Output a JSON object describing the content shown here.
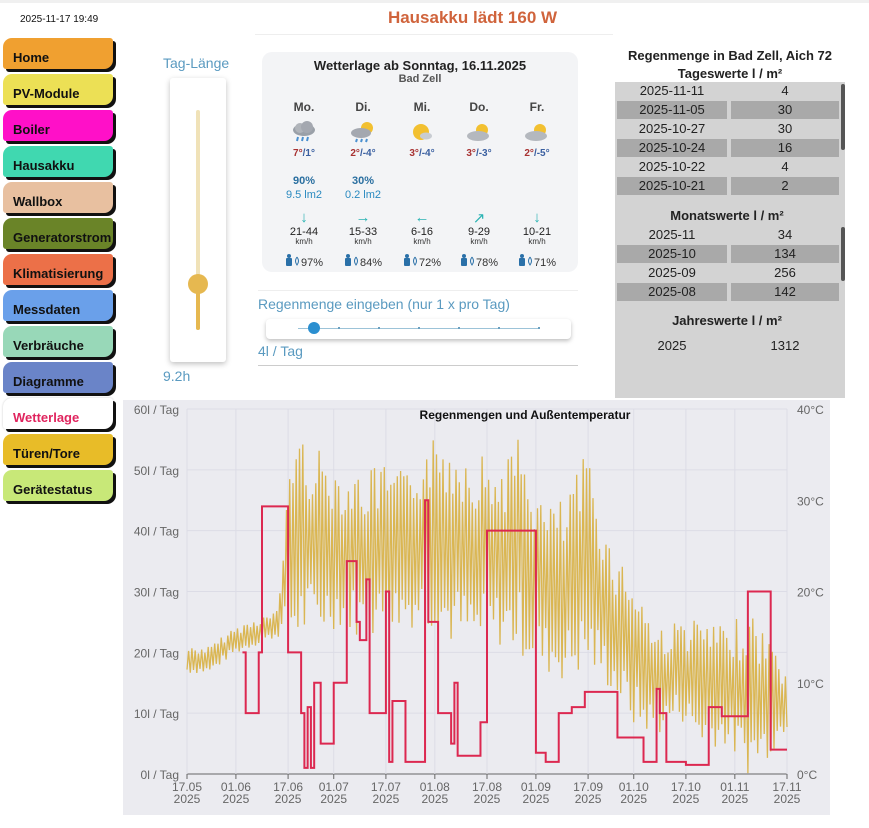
{
  "header": {
    "datetime": "2025-11-17 19:49",
    "title": "Hausakku lädt 160 W"
  },
  "sidebar": {
    "items": [
      {
        "label": "Home",
        "color": "#f0a030"
      },
      {
        "label": "PV-Module",
        "color": "#ece055"
      },
      {
        "label": "Boiler",
        "color": "#ff10c8"
      },
      {
        "label": "Hausakku",
        "color": "#40d8b0"
      },
      {
        "label": "Wallbox",
        "color": "#e8c0a0"
      },
      {
        "label": "Generatorstrom",
        "color": "#6a8428"
      },
      {
        "label": "Klimatisierung",
        "color": "#ec7048"
      },
      {
        "label": "Messdaten",
        "color": "#6aa0ea"
      },
      {
        "label": "Verbräuche",
        "color": "#98d8b8"
      },
      {
        "label": "Diagramme",
        "color": "#6a84c8"
      },
      {
        "label": "Wetterlage",
        "color": "#ffffff",
        "active": true
      },
      {
        "label": "Türen/Tore",
        "color": "#e8bc28"
      },
      {
        "label": "Gerätestatus",
        "color": "#c8e878"
      }
    ]
  },
  "daylength": {
    "label": "Tag-Länge",
    "value": "9.2h",
    "slider_fraction": 0.21
  },
  "weather": {
    "title": "Wetterlage ab Sonntag, 16.11.2025",
    "location": "Bad Zell",
    "days": [
      {
        "name": "Mo.",
        "icon": "rain-cloud-icon",
        "tmax": "7°",
        "tmin": "1°",
        "rain_prob": "90%",
        "rain_amount": "9.5 lm2",
        "wind_arrow": "↓",
        "wind": "21-44",
        "wind_unit": "km/h",
        "humidity": "97%"
      },
      {
        "name": "Di.",
        "icon": "sun-cloud-rain-icon",
        "tmax": "2°",
        "tmin": "-4°",
        "rain_prob": "30%",
        "rain_amount": "0.2 lm2",
        "wind_arrow": "→",
        "wind": "15-33",
        "wind_unit": "km/h",
        "humidity": "84%"
      },
      {
        "name": "Mi.",
        "icon": "sun-small-cloud-icon",
        "tmax": "3°",
        "tmin": "-4°",
        "rain_prob": "",
        "rain_amount": "",
        "wind_arrow": "←",
        "wind": "6-16",
        "wind_unit": "km/h",
        "humidity": "72%"
      },
      {
        "name": "Do.",
        "icon": "cloud-sun-icon",
        "tmax": "3°",
        "tmin": "-3°",
        "rain_prob": "",
        "rain_amount": "",
        "wind_arrow": "↗",
        "wind": "9-29",
        "wind_unit": "km/h",
        "humidity": "78%"
      },
      {
        "name": "Fr.",
        "icon": "cloud-sun-icon",
        "tmax": "2°",
        "tmin": "-5°",
        "rain_prob": "",
        "rain_amount": "",
        "wind_arrow": "↓",
        "wind": "10-21",
        "wind_unit": "km/h",
        "humidity": "71%"
      }
    ]
  },
  "rain_input": {
    "label": "Regenmenge eingeben (nur 1 x pro Tag)",
    "value": 4,
    "max": 60,
    "value_label": "4l / Tag"
  },
  "rain_table": {
    "title": "Regenmenge in Bad Zell, Aich 72",
    "daily_title": "Tageswerte l / m²",
    "daily": [
      [
        "2025-11-11",
        "4"
      ],
      [
        "2025-11-05",
        "30"
      ],
      [
        "2025-10-27",
        "30"
      ],
      [
        "2025-10-24",
        "16"
      ],
      [
        "2025-10-22",
        "4"
      ],
      [
        "2025-10-21",
        "2"
      ]
    ],
    "monthly_title": "Monatswerte l / m²",
    "monthly": [
      [
        "2025-11",
        "34"
      ],
      [
        "2025-10",
        "134"
      ],
      [
        "2025-09",
        "256"
      ],
      [
        "2025-08",
        "142"
      ]
    ],
    "yearly_title": "Jahreswerte l / m²",
    "yearly": [
      [
        "2025",
        "1312"
      ]
    ]
  },
  "chart_data": {
    "type": "line",
    "title": "Regenmengen und Außentemperatur",
    "x_range": [
      "2025-05-17",
      "2025-11-17"
    ],
    "x_ticks": [
      [
        "2025-05-17",
        "17.05",
        "2025"
      ],
      [
        "2025-06-01",
        "01.06",
        "2025"
      ],
      [
        "2025-06-17",
        "17.06",
        "2025"
      ],
      [
        "2025-07-01",
        "01.07",
        "2025"
      ],
      [
        "2025-07-17",
        "17.07",
        "2025"
      ],
      [
        "2025-08-01",
        "01.08",
        "2025"
      ],
      [
        "2025-08-17",
        "17.08",
        "2025"
      ],
      [
        "2025-09-01",
        "01.09",
        "2025"
      ],
      [
        "2025-09-17",
        "17.09",
        "2025"
      ],
      [
        "2025-10-01",
        "01.10",
        "2025"
      ],
      [
        "2025-10-17",
        "17.10",
        "2025"
      ],
      [
        "2025-11-01",
        "01.11",
        "2025"
      ],
      [
        "2025-11-17",
        "17.11",
        "2025"
      ]
    ],
    "y_left": {
      "range": [
        0,
        60
      ],
      "ticks": [
        "0l / Tag",
        "10l / Tag",
        "20l / Tag",
        "30l / Tag",
        "40l / Tag",
        "50l / Tag",
        "60l / Tag"
      ]
    },
    "y_right": {
      "range": [
        0,
        40
      ],
      "ticks": [
        "0°C",
        "10°C",
        "20°C",
        "30°C",
        "40°C"
      ]
    },
    "grid": true,
    "series": [
      {
        "kind": "rain-step",
        "color": "#dc2850",
        "axis": "left",
        "points": [
          [
            "2025-06-03",
            20
          ],
          [
            "2025-06-04",
            10
          ],
          [
            "2025-06-08",
            20
          ],
          [
            "2025-06-09",
            44
          ],
          [
            "2025-06-17",
            20
          ],
          [
            "2025-06-21",
            10
          ],
          [
            "2025-06-22",
            1
          ],
          [
            "2025-06-23",
            11
          ],
          [
            "2025-06-24",
            1
          ],
          [
            "2025-06-25",
            15
          ],
          [
            "2025-06-27",
            5
          ],
          [
            "2025-07-01",
            15
          ],
          [
            "2025-07-05",
            35
          ],
          [
            "2025-07-08",
            25
          ],
          [
            "2025-07-09",
            22
          ],
          [
            "2025-07-11",
            32
          ],
          [
            "2025-07-12",
            10
          ],
          [
            "2025-07-17",
            30
          ],
          [
            "2025-07-18",
            2
          ],
          [
            "2025-07-19",
            12
          ],
          [
            "2025-07-23",
            2
          ],
          [
            "2025-07-29",
            45
          ],
          [
            "2025-07-30",
            25
          ],
          [
            "2025-08-02",
            10
          ],
          [
            "2025-08-06",
            5
          ],
          [
            "2025-08-07",
            15
          ],
          [
            "2025-08-08",
            3
          ],
          [
            "2025-08-15",
            8.5
          ],
          [
            "2025-08-17",
            40
          ],
          [
            "2025-09-01",
            3.5
          ],
          [
            "2025-09-04",
            2
          ],
          [
            "2025-09-08",
            10
          ],
          [
            "2025-09-12",
            11
          ],
          [
            "2025-09-16",
            13.5
          ],
          [
            "2025-09-26",
            6
          ],
          [
            "2025-10-04",
            2
          ],
          [
            "2025-10-08",
            14
          ],
          [
            "2025-10-09",
            10
          ],
          [
            "2025-10-11",
            2
          ],
          [
            "2025-10-17",
            1.5
          ],
          [
            "2025-10-24",
            11
          ],
          [
            "2025-10-28",
            9.5
          ],
          [
            "2025-11-05",
            30
          ],
          [
            "2025-11-12",
            4
          ],
          [
            "2025-11-17",
            4
          ]
        ]
      },
      {
        "kind": "temperature",
        "color": "#d8b040",
        "axis": "right",
        "daily_min_max": [
          [
            "2025-05-17",
            11,
            14
          ],
          [
            "2025-05-24",
            11,
            14
          ],
          [
            "2025-05-31",
            13,
            16
          ],
          [
            "2025-06-07",
            14,
            17
          ],
          [
            "2025-06-14",
            15,
            18
          ],
          [
            "2025-06-18",
            14,
            38
          ],
          [
            "2025-06-25",
            15,
            36
          ],
          [
            "2025-07-02",
            16,
            34
          ],
          [
            "2025-07-09",
            15,
            33
          ],
          [
            "2025-07-16",
            15,
            34
          ],
          [
            "2025-07-23",
            16,
            33
          ],
          [
            "2025-07-30",
            16,
            37
          ],
          [
            "2025-08-06",
            14,
            37
          ],
          [
            "2025-08-13",
            13,
            36
          ],
          [
            "2025-08-20",
            14,
            34
          ],
          [
            "2025-08-27",
            13,
            37
          ],
          [
            "2025-09-03",
            11,
            30
          ],
          [
            "2025-09-10",
            10,
            30
          ],
          [
            "2025-09-17",
            11,
            36
          ],
          [
            "2025-09-24",
            9,
            25
          ],
          [
            "2025-10-01",
            5,
            22
          ],
          [
            "2025-10-08",
            4,
            16
          ],
          [
            "2025-10-15",
            6,
            17
          ],
          [
            "2025-10-22",
            3,
            17
          ],
          [
            "2025-10-29",
            3,
            16
          ],
          [
            "2025-11-05",
            0,
            18
          ],
          [
            "2025-11-12",
            2,
            15
          ],
          [
            "2025-11-17",
            5,
            11
          ]
        ]
      }
    ]
  }
}
